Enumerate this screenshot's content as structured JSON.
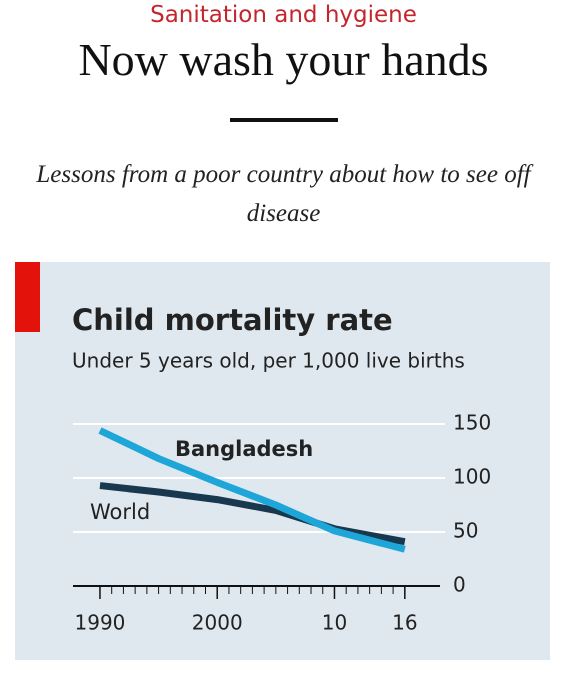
{
  "header": {
    "kicker": "Sanitation and hygiene",
    "title": "Now wash your hands",
    "subtitle": "Lessons from a poor country about how to see off disease"
  },
  "chart_data": {
    "type": "line",
    "title": "Child mortality rate",
    "subtitle": "Under 5 years old, per 1,000 live births",
    "x": [
      1990,
      1995,
      2000,
      2005,
      2010,
      2016
    ],
    "series": [
      {
        "name": "Bangladesh",
        "color": "#1fa6d8",
        "values": [
          144,
          118,
          96,
          75,
          51,
          34
        ]
      },
      {
        "name": "World",
        "color": "#17384f",
        "values": [
          93,
          87,
          80,
          70,
          53,
          41
        ]
      }
    ],
    "xlim": [
      1987.7,
      2019
    ],
    "ylim": [
      0,
      150
    ],
    "xticks": [
      1990,
      2000,
      {
        "value": 2010,
        "label": "10"
      },
      {
        "value": 2016,
        "label": "16"
      }
    ],
    "xminor_ticks": [
      1990,
      1991,
      1992,
      1993,
      1994,
      1995,
      1996,
      1997,
      1998,
      1999,
      2000,
      2001,
      2002,
      2003,
      2004,
      2005,
      2006,
      2007,
      2008,
      2009,
      2010,
      2011,
      2012,
      2013,
      2014,
      2015,
      2016
    ],
    "yticks": [
      0,
      50,
      100,
      150
    ],
    "grid": true,
    "y_axis_side": "right"
  }
}
